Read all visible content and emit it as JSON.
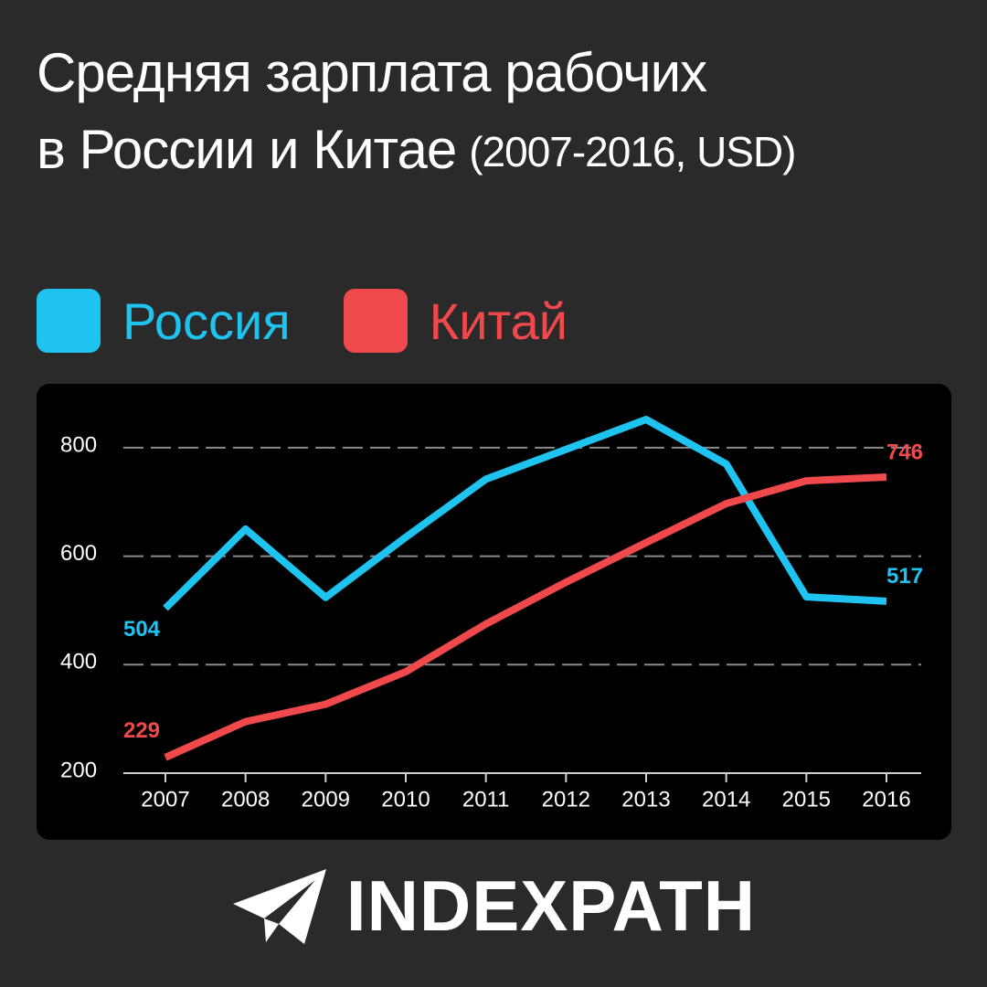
{
  "chart_data": {
    "type": "line",
    "title": "Средняя зарплата рабочих в России и Китае",
    "subtitle": "(2007-2016, USD)",
    "categories": [
      "2007",
      "2008",
      "2009",
      "2010",
      "2011",
      "2012",
      "2013",
      "2014",
      "2015",
      "2016"
    ],
    "series": [
      {
        "name": "Россия",
        "color": "#1fc3f0",
        "values": [
          504,
          650,
          524,
          635,
          742,
          797,
          852,
          770,
          525,
          517
        ]
      },
      {
        "name": "Китай",
        "color": "#f0494b",
        "values": [
          229,
          295,
          327,
          387,
          475,
          552,
          625,
          697,
          739,
          746
        ]
      }
    ],
    "ylim": [
      200,
      875
    ],
    "yticks": [
      200,
      400,
      600,
      800
    ],
    "grid": true
  },
  "brand": "INDEXPATH"
}
